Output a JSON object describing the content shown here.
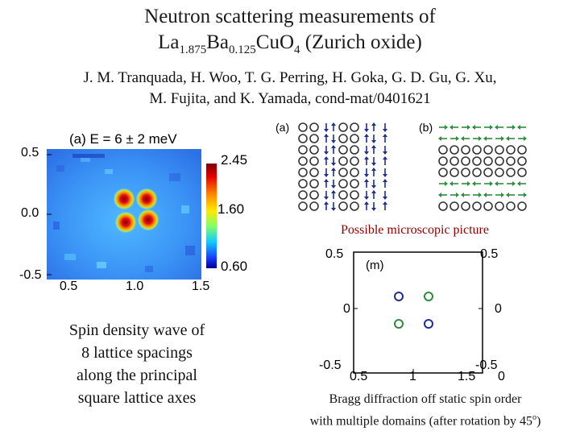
{
  "title": {
    "line1": "Neutron scattering measurements of",
    "formula_la": "La",
    "formula_la_sub": "1.875",
    "formula_ba": "Ba",
    "formula_ba_sub": "0.125",
    "formula_cuo": "CuO",
    "formula_o_sub": "4",
    "formula_suffix": " (Zurich oxide)"
  },
  "authors": {
    "line1": "J. M. Tranquada, H. Woo, T. G. Perring, H. Goka, G. D. Gu, G. Xu,",
    "line2": "M. Fujita, and K. Yamada, cond-mat/0401621"
  },
  "heatmap": {
    "panel_label": "(a) E = 6 ± 2 meV",
    "y_ticks": [
      "0.5",
      "0.0",
      "-0.5"
    ],
    "x_ticks": [
      "0.5",
      "1.0",
      "1.5"
    ],
    "colorbar_ticks": [
      "2.45",
      "1.60",
      "0.60"
    ]
  },
  "spin_diagrams": {
    "label_a": "(a)",
    "label_b": "(b)",
    "caption": "Possible microscopic picture"
  },
  "bragg_plot": {
    "label": "(m)",
    "left_ticks": [
      "0.5",
      "0",
      "-0.5"
    ],
    "right_ticks": [
      "0.5",
      "0",
      "-0.5"
    ],
    "bottom_ticks": [
      "0.5",
      "1",
      "1.5",
      "0"
    ],
    "color_domain1": "#1f2f8f",
    "color_domain2": "#2e8b3e"
  },
  "left_caption": {
    "line1": "Spin density wave of",
    "line2": "8 lattice spacings",
    "line3": "along the principal",
    "line4": "square lattice axes"
  },
  "bottom_caption": {
    "line1": "Bragg diffraction off static spin order",
    "line2": "with multiple domains (after rotation by 45",
    "degree": "o",
    "close": ")"
  }
}
